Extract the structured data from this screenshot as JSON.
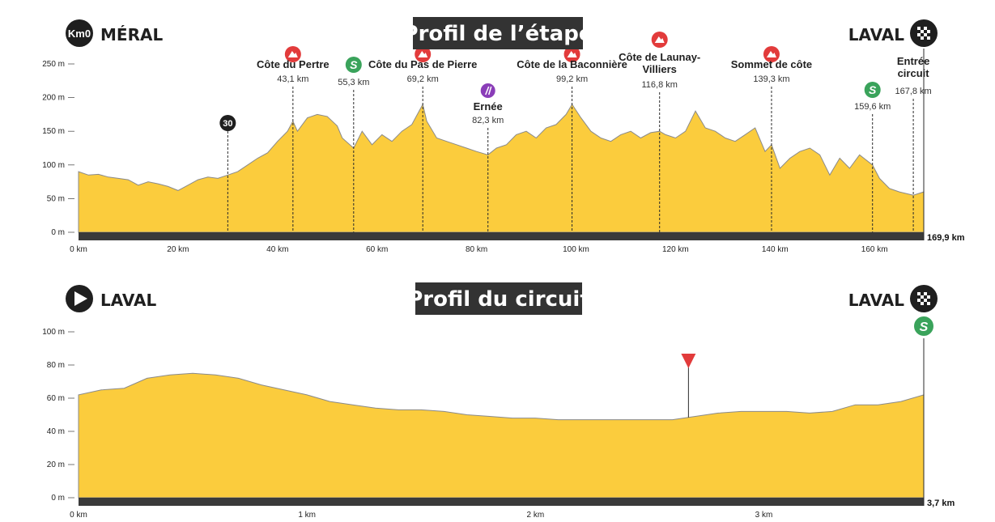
{
  "colors": {
    "profile_fill": "#fbcc3d",
    "profile_stroke": "#8a8a8a",
    "baseline": "#3a3a3a",
    "climb_marker": "#e23b3b",
    "sprint_marker": "#3aa35b",
    "feed_marker": "#8a3db8",
    "title_bg": "#333333",
    "guide_line": "#2a2a2a"
  },
  "chart_data": [
    {
      "type": "area",
      "title": "Profil de l’étape",
      "start_label": "MÉRAL",
      "start_badge": "Km0",
      "finish_label": "LAVAL",
      "finish_icon": "chequered-flag-icon",
      "end_distance_label": "169,9 km",
      "xlim": [
        0,
        169.9
      ],
      "ylim": [
        0,
        250
      ],
      "x_ticks": [
        0,
        20,
        40,
        60,
        80,
        100,
        120,
        140,
        160
      ],
      "x_tick_labels": [
        "0 km",
        "20 km",
        "40 km",
        "60 km",
        "80 km",
        "100 km",
        "120 km",
        "140 km",
        "160 km"
      ],
      "y_ticks": [
        0,
        50,
        100,
        150,
        200,
        250
      ],
      "y_tick_labels": [
        "0 m",
        "50 m",
        "100 m",
        "150 m",
        "200 m",
        "250 m"
      ],
      "x": [
        0,
        2,
        4,
        6,
        8,
        10,
        12,
        14,
        16,
        18,
        20,
        22,
        24,
        26,
        28,
        30,
        32,
        34,
        36,
        38,
        40,
        42,
        43.1,
        44,
        46,
        48,
        50,
        52,
        53,
        55.3,
        57,
        59,
        61,
        63,
        65,
        67,
        69.2,
        70,
        72,
        74,
        76,
        78,
        80,
        82.3,
        84,
        86,
        88,
        90,
        92,
        94,
        96,
        98,
        99.2,
        101,
        103,
        105,
        107,
        109,
        111,
        113,
        115,
        116.8,
        118,
        120,
        122,
        124,
        126,
        128,
        130,
        132,
        134,
        136,
        138,
        139.3,
        141,
        143,
        145,
        147,
        149,
        151,
        153,
        155,
        157,
        159.6,
        161,
        163,
        165,
        167.8,
        169.9
      ],
      "y": [
        90,
        85,
        86,
        82,
        80,
        78,
        70,
        75,
        72,
        68,
        62,
        70,
        78,
        82,
        80,
        85,
        90,
        100,
        110,
        118,
        135,
        150,
        165,
        150,
        170,
        175,
        172,
        158,
        140,
        125,
        150,
        130,
        145,
        135,
        150,
        160,
        190,
        165,
        140,
        135,
        130,
        125,
        120,
        115,
        125,
        130,
        145,
        150,
        140,
        155,
        160,
        175,
        190,
        170,
        150,
        140,
        135,
        145,
        150,
        140,
        148,
        150,
        145,
        140,
        150,
        180,
        155,
        150,
        140,
        135,
        145,
        155,
        120,
        130,
        95,
        110,
        120,
        125,
        115,
        85,
        110,
        95,
        115,
        100,
        80,
        65,
        60,
        55,
        60
      ],
      "markers": [
        {
          "x": 30,
          "kind": "km-badge",
          "icon": "km-30-badge-icon",
          "badge_text": "30",
          "name": "",
          "km_label": ""
        },
        {
          "x": 43.1,
          "kind": "climb",
          "icon": "climb-icon",
          "name": "Côte du Pertre",
          "km_label": "43,1 km"
        },
        {
          "x": 55.3,
          "kind": "sprint",
          "icon": "sprint-icon",
          "name": "",
          "km_label": "55,3 km"
        },
        {
          "x": 69.2,
          "kind": "climb",
          "icon": "climb-icon",
          "name": "Côte du Pas de Pierre",
          "km_label": "69,2 km"
        },
        {
          "x": 82.3,
          "kind": "feed",
          "icon": "feed-zone-icon",
          "name": "Ernée",
          "km_label": "82,3 km"
        },
        {
          "x": 99.2,
          "kind": "climb",
          "icon": "climb-icon",
          "name": "Côte de la Baconnière",
          "km_label": "99,2 km"
        },
        {
          "x": 116.8,
          "kind": "climb",
          "icon": "climb-icon",
          "name": "Côte de Launay-\nVilliers",
          "km_label": "116,8 km"
        },
        {
          "x": 139.3,
          "kind": "climb",
          "icon": "climb-icon",
          "name": "Sommet de côte",
          "km_label": "139,3 km"
        },
        {
          "x": 159.6,
          "kind": "sprint",
          "icon": "sprint-icon",
          "name": "",
          "km_label": "159,6 km"
        },
        {
          "x": 167.8,
          "kind": "text",
          "icon": "",
          "name": "Entrée\ncircuit",
          "km_label": "167,8 km"
        }
      ]
    },
    {
      "type": "area",
      "title": "Profil du circuit",
      "start_label": "LAVAL",
      "start_icon": "start-arrow-icon",
      "finish_label": "LAVAL",
      "finish_icon": "chequered-flag-icon",
      "finish_extra_icon": "sprint-icon",
      "end_distance_label": "3,7 km",
      "xlim": [
        0,
        3.7
      ],
      "ylim": [
        0,
        100
      ],
      "x_ticks": [
        0,
        1,
        2,
        3
      ],
      "x_tick_labels": [
        "0 km",
        "1 km",
        "2 km",
        "3 km"
      ],
      "y_ticks": [
        0,
        20,
        40,
        60,
        80,
        100
      ],
      "y_tick_labels": [
        "0 m",
        "20 m",
        "40 m",
        "60 m",
        "80 m",
        "100 m"
      ],
      "x": [
        0,
        0.1,
        0.2,
        0.3,
        0.4,
        0.5,
        0.6,
        0.7,
        0.8,
        0.9,
        1.0,
        1.1,
        1.2,
        1.3,
        1.4,
        1.5,
        1.6,
        1.7,
        1.8,
        1.9,
        2.0,
        2.1,
        2.2,
        2.3,
        2.4,
        2.5,
        2.6,
        2.7,
        2.8,
        2.9,
        3.0,
        3.1,
        3.2,
        3.3,
        3.4,
        3.5,
        3.6,
        3.7
      ],
      "y": [
        62,
        65,
        66,
        72,
        74,
        75,
        74,
        72,
        68,
        65,
        62,
        58,
        56,
        54,
        53,
        53,
        52,
        50,
        49,
        48,
        48,
        47,
        47,
        47,
        47,
        47,
        47,
        49,
        51,
        52,
        52,
        52,
        51,
        52,
        56,
        56,
        58,
        62
      ],
      "markers": [
        {
          "x": 2.67,
          "kind": "triangle",
          "icon": "red-kite-icon",
          "name": "",
          "km_label": ""
        }
      ]
    }
  ]
}
